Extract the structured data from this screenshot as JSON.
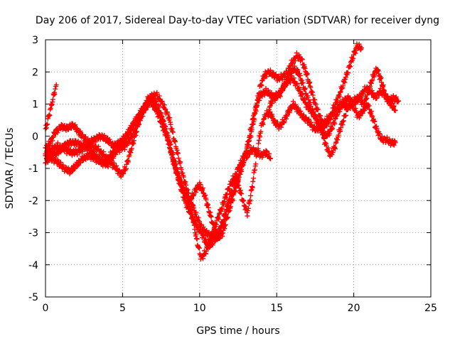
{
  "chart_data": {
    "type": "scatter",
    "title": "Day 206 of 2017, Sidereal Day-to-day VTEC variation (SDTVAR) for receiver dyng",
    "xlabel": "GPS time / hours",
    "ylabel": "SDTVAR / TECUs",
    "xlim": [
      0,
      25
    ],
    "ylim": [
      -5,
      3
    ],
    "xticks": [
      0,
      5,
      10,
      15,
      20,
      25
    ],
    "yticks": [
      -5,
      -4,
      -3,
      -2,
      -1,
      0,
      1,
      2,
      3
    ],
    "grid": true,
    "legend": "none",
    "marker": "plus",
    "color": "#ff0000",
    "series": [
      {
        "points": [
          [
            0,
            -0.4
          ],
          [
            0.3,
            -0.2
          ],
          [
            0.6,
            0.1
          ],
          [
            1,
            0.3
          ],
          [
            1.4,
            0.25
          ],
          [
            1.8,
            0.35
          ],
          [
            2.2,
            0.1
          ],
          [
            2.6,
            -0.1
          ],
          [
            3,
            -0.3
          ],
          [
            3.4,
            -0.4
          ],
          [
            3.8,
            -0.6
          ],
          [
            4.2,
            -0.8
          ],
          [
            4.6,
            -1.0
          ],
          [
            4.9,
            -1.2
          ],
          [
            5.2,
            -1.0
          ],
          [
            5.5,
            -0.5
          ],
          [
            5.8,
            0.0
          ],
          [
            6.1,
            0.5
          ],
          [
            6.4,
            0.9
          ],
          [
            6.7,
            1.2
          ],
          [
            7,
            1.2
          ],
          [
            7.3,
            0.9
          ],
          [
            7.6,
            0.5
          ],
          [
            7.9,
            0.0
          ],
          [
            8.2,
            -0.6
          ],
          [
            8.5,
            -1.1
          ],
          [
            8.8,
            -1.5
          ],
          [
            9.1,
            -1.8
          ],
          [
            9.4,
            -2.0
          ],
          [
            9.7,
            -1.7
          ],
          [
            10,
            -1.5
          ],
          [
            10.3,
            -1.8
          ],
          [
            10.6,
            -2.3
          ],
          [
            10.9,
            -2.8
          ],
          [
            11.2,
            -3.2
          ],
          [
            11.5,
            -3.0
          ],
          [
            11.8,
            -2.5
          ],
          [
            12.1,
            -2.0
          ],
          [
            12.4,
            -1.5
          ],
          [
            12.7,
            -1.0
          ],
          [
            13,
            -0.5
          ],
          [
            13.3,
            0.0
          ],
          [
            13.6,
            0.7
          ],
          [
            13.9,
            1.5
          ],
          [
            14.2,
            1.9
          ],
          [
            14.5,
            2.0
          ],
          [
            14.8,
            1.9
          ],
          [
            15.1,
            1.8
          ],
          [
            15.4,
            1.85
          ],
          [
            15.7,
            2.0
          ],
          [
            16,
            2.3
          ],
          [
            16.3,
            2.5
          ],
          [
            16.6,
            2.4
          ],
          [
            16.9,
            2.0
          ],
          [
            17.2,
            1.5
          ],
          [
            17.5,
            1.0
          ],
          [
            17.8,
            0.6
          ],
          [
            18.1,
            0.3
          ],
          [
            18.4,
            0.5
          ],
          [
            18.7,
            0.9
          ],
          [
            19,
            1.2
          ],
          [
            19.3,
            1.6
          ],
          [
            19.6,
            2.0
          ],
          [
            19.9,
            2.4
          ],
          [
            20.2,
            2.8
          ],
          [
            20.5,
            2.75
          ]
        ]
      },
      {
        "points": [
          [
            0,
            -0.8
          ],
          [
            0.4,
            -0.6
          ],
          [
            0.8,
            -0.5
          ],
          [
            1.2,
            -0.3
          ],
          [
            1.6,
            -0.2
          ],
          [
            2,
            -0.2
          ],
          [
            2.4,
            -0.3
          ],
          [
            2.8,
            -0.4
          ],
          [
            3.2,
            -0.6
          ],
          [
            3.6,
            -0.8
          ],
          [
            4,
            -0.9
          ],
          [
            4.4,
            -0.6
          ],
          [
            4.8,
            -0.3
          ],
          [
            5.2,
            -0.1
          ],
          [
            5.6,
            0.3
          ],
          [
            6,
            0.6
          ],
          [
            6.4,
            0.9
          ],
          [
            6.8,
            1.1
          ],
          [
            7.2,
            0.8
          ],
          [
            7.6,
            0.3
          ],
          [
            8,
            -0.2
          ],
          [
            8.3,
            -0.8
          ],
          [
            8.6,
            -1.3
          ],
          [
            8.9,
            -1.8
          ],
          [
            9.2,
            -2.2
          ],
          [
            9.5,
            -2.5
          ],
          [
            9.8,
            -2.8
          ],
          [
            10.1,
            -3.0
          ],
          [
            10.4,
            -3.3
          ],
          [
            10.7,
            -3.4
          ],
          [
            11,
            -3.2
          ],
          [
            11.3,
            -2.9
          ],
          [
            11.6,
            -2.5
          ],
          [
            11.9,
            -2.1
          ],
          [
            12.2,
            -1.7
          ],
          [
            12.5,
            -1.3
          ],
          [
            12.8,
            -0.9
          ],
          [
            13.1,
            -0.3
          ],
          [
            13.4,
            0.4
          ],
          [
            13.7,
            1.0
          ],
          [
            14,
            1.3
          ],
          [
            14.3,
            1.4
          ],
          [
            14.6,
            1.3
          ],
          [
            14.9,
            1.2
          ],
          [
            15.2,
            1.3
          ],
          [
            15.5,
            1.6
          ],
          [
            15.8,
            1.9
          ],
          [
            16.1,
            2.1
          ],
          [
            16.4,
            2.0
          ],
          [
            16.7,
            1.6
          ],
          [
            17,
            1.2
          ],
          [
            17.3,
            0.8
          ],
          [
            17.6,
            0.5
          ],
          [
            17.9,
            0.2
          ],
          [
            18.2,
            -0.3
          ],
          [
            18.5,
            -0.6
          ],
          [
            18.8,
            -0.3
          ],
          [
            19.1,
            0.2
          ],
          [
            19.4,
            0.6
          ],
          [
            19.7,
            1.0
          ],
          [
            20,
            1.1
          ],
          [
            20.3,
            1.2
          ],
          [
            20.6,
            1.0
          ],
          [
            20.9,
            1.3
          ],
          [
            21.2,
            1.8
          ],
          [
            21.5,
            2.1
          ],
          [
            21.8,
            1.7
          ],
          [
            22.1,
            1.2
          ],
          [
            22.4,
            1.0
          ],
          [
            22.7,
            0.8
          ]
        ]
      },
      {
        "points": [
          [
            0,
            -0.5
          ],
          [
            0.4,
            -0.4
          ],
          [
            0.8,
            -0.3
          ],
          [
            1.2,
            -0.4
          ],
          [
            1.6,
            -0.5
          ],
          [
            2,
            -0.5
          ],
          [
            2.4,
            -0.4
          ],
          [
            2.8,
            -0.2
          ],
          [
            3.2,
            -0.1
          ],
          [
            3.6,
            0.0
          ],
          [
            4,
            -0.1
          ],
          [
            4.4,
            -0.3
          ],
          [
            4.8,
            -0.2
          ],
          [
            5.2,
            0.0
          ],
          [
            5.6,
            0.3
          ],
          [
            6,
            0.6
          ],
          [
            6.4,
            0.9
          ],
          [
            6.8,
            1.2
          ],
          [
            7.2,
            1.3
          ],
          [
            7.6,
            1.0
          ],
          [
            8,
            0.6
          ],
          [
            8.3,
            0.0
          ],
          [
            8.6,
            -0.6
          ],
          [
            8.9,
            -1.2
          ],
          [
            9.2,
            -1.7
          ],
          [
            9.5,
            -2.1
          ],
          [
            9.8,
            -2.5
          ],
          [
            10.1,
            -2.8
          ],
          [
            10.4,
            -3.0
          ],
          [
            10.7,
            -3.1
          ],
          [
            11,
            -3.2
          ],
          [
            11.3,
            -3.0
          ],
          [
            11.6,
            -2.6
          ],
          [
            11.9,
            -2.0
          ],
          [
            12.2,
            -1.4
          ],
          [
            12.5,
            -1.0
          ],
          [
            12.8,
            -0.7
          ],
          [
            13.1,
            -0.6
          ],
          [
            13.4,
            -0.4
          ],
          [
            13.7,
            -0.5
          ],
          [
            14,
            -0.6
          ],
          [
            14.3,
            -0.5
          ],
          [
            14.6,
            -0.7
          ]
        ]
      },
      {
        "points": [
          [
            0,
            -0.6
          ],
          [
            0.4,
            -0.7
          ],
          [
            0.8,
            -0.8
          ],
          [
            1.2,
            -1.0
          ],
          [
            1.6,
            -1.1
          ],
          [
            2,
            -0.9
          ],
          [
            2.4,
            -0.7
          ],
          [
            2.8,
            -0.6
          ],
          [
            3.2,
            -0.7
          ],
          [
            3.6,
            -0.8
          ],
          [
            4,
            -0.7
          ],
          [
            4.4,
            -0.5
          ],
          [
            4.8,
            -0.4
          ],
          [
            5.2,
            -0.3
          ],
          [
            5.6,
            0.0
          ],
          [
            6,
            0.4
          ],
          [
            6.4,
            0.8
          ],
          [
            6.8,
            1.1
          ],
          [
            7.2,
            0.9
          ],
          [
            7.6,
            0.5
          ],
          [
            8,
            -0.1
          ],
          [
            8.3,
            -0.7
          ],
          [
            8.6,
            -1.2
          ],
          [
            8.9,
            -1.6
          ],
          [
            9.2,
            -2.0
          ],
          [
            9.5,
            -2.4
          ],
          [
            9.8,
            -3.2
          ],
          [
            10.1,
            -3.8
          ],
          [
            10.4,
            -3.6
          ],
          [
            10.7,
            -3.2
          ],
          [
            11,
            -2.8
          ],
          [
            11.3,
            -2.4
          ],
          [
            11.6,
            -2.0
          ],
          [
            11.9,
            -1.6
          ],
          [
            12.2,
            -1.3
          ],
          [
            12.5,
            -1.5
          ],
          [
            12.8,
            -2.0
          ],
          [
            13.1,
            -2.4
          ],
          [
            13.4,
            -1.6
          ],
          [
            13.7,
            -0.6
          ],
          [
            14,
            0.3
          ],
          [
            14.3,
            0.7
          ],
          [
            14.6,
            0.7
          ],
          [
            14.9,
            0.4
          ],
          [
            15.2,
            0.3
          ],
          [
            15.5,
            0.5
          ],
          [
            15.8,
            0.8
          ],
          [
            16.1,
            1.0
          ],
          [
            16.4,
            0.8
          ],
          [
            16.7,
            0.6
          ],
          [
            17,
            0.5
          ],
          [
            17.3,
            0.3
          ],
          [
            17.6,
            0.2
          ],
          [
            17.9,
            0.3
          ],
          [
            18.2,
            0.5
          ],
          [
            18.5,
            0.6
          ],
          [
            18.8,
            0.8
          ],
          [
            19.1,
            1.0
          ],
          [
            19.4,
            1.1
          ],
          [
            19.7,
            1.2
          ],
          [
            20,
            0.9
          ],
          [
            20.3,
            0.6
          ],
          [
            20.6,
            0.8
          ],
          [
            20.9,
            1.0
          ],
          [
            21.2,
            0.6
          ],
          [
            21.5,
            0.2
          ],
          [
            21.8,
            -0.1
          ],
          [
            22.1,
            -0.1
          ],
          [
            22.4,
            -0.2
          ],
          [
            22.7,
            -0.2
          ]
        ]
      },
      {
        "points": [
          [
            0,
            0.2
          ],
          [
            0.15,
            0.5
          ],
          [
            0.3,
            0.8
          ],
          [
            0.45,
            1.1
          ],
          [
            0.6,
            1.4
          ],
          [
            0.7,
            1.6
          ]
        ]
      },
      {
        "points": [
          [
            14.5,
            0.9
          ],
          [
            14.8,
            1.2
          ],
          [
            15.1,
            1.3
          ],
          [
            15.4,
            1.5
          ],
          [
            15.7,
            1.7
          ],
          [
            16,
            1.8
          ],
          [
            16.3,
            1.6
          ],
          [
            16.6,
            1.3
          ],
          [
            16.9,
            1.0
          ],
          [
            17.2,
            0.8
          ],
          [
            17.5,
            0.6
          ],
          [
            17.8,
            0.3
          ],
          [
            18.1,
            0.0
          ],
          [
            18.4,
            0.1
          ],
          [
            18.7,
            0.4
          ],
          [
            19,
            0.8
          ],
          [
            19.3,
            1.0
          ],
          [
            19.6,
            0.9
          ],
          [
            19.9,
            1.0
          ],
          [
            20.2,
            1.1
          ],
          [
            20.5,
            1.3
          ],
          [
            20.8,
            1.5
          ],
          [
            21.1,
            1.4
          ],
          [
            21.4,
            1.2
          ],
          [
            21.7,
            1.4
          ],
          [
            22,
            1.3
          ],
          [
            22.3,
            1.1
          ],
          [
            22.6,
            1.2
          ],
          [
            22.9,
            1.1
          ]
        ]
      }
    ]
  }
}
